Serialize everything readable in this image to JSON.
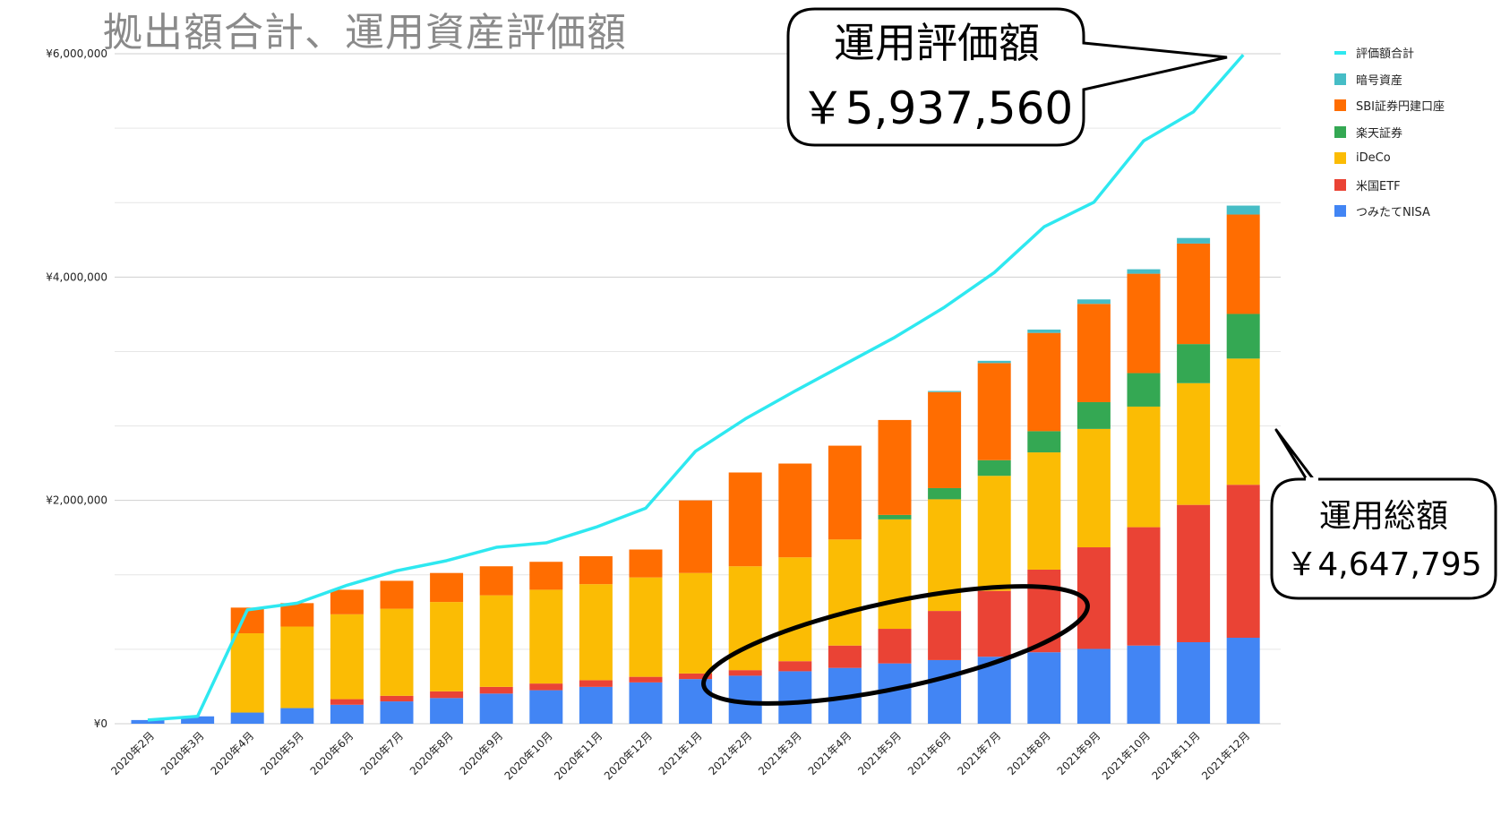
{
  "chart_data": {
    "type": "bar",
    "title": "拠出額合計、運用資産評価額",
    "categories": [
      "2020年2月",
      "2020年3月",
      "2020年4月",
      "2020年5月",
      "2020年6月",
      "2020年7月",
      "2020年8月",
      "2020年9月",
      "2020年10月",
      "2020年11月",
      "2020年12月",
      "2021年1月",
      "2021年2月",
      "2021年3月",
      "2021年4月",
      "2021年5月",
      "2021年6月",
      "2021年7月",
      "2021年8月",
      "2021年9月",
      "2021年10月",
      "2021年11月",
      "2021年12月"
    ],
    "ylim": [
      0,
      6000000
    ],
    "y_ticks": [
      "¥0",
      "¥2,000,000",
      "¥4,000,000",
      "¥6,000,000"
    ],
    "y_tick_values": [
      0,
      2000000,
      4000000,
      6000000
    ],
    "grid": true,
    "legend_position": "right",
    "stacked": true,
    "series": [
      {
        "name": "つみたてNISA",
        "color": "#4285f4",
        "values": [
          33000,
          66000,
          100000,
          140000,
          170000,
          200000,
          230000,
          270000,
          300000,
          330000,
          370000,
          400000,
          430000,
          470000,
          500000,
          540000,
          570000,
          600000,
          640000,
          670000,
          700000,
          730000,
          770000
        ]
      },
      {
        "name": "米国ETF",
        "color": "#ea4335",
        "values": [
          0,
          0,
          0,
          0,
          50000,
          50000,
          60000,
          60000,
          60000,
          60000,
          50000,
          50000,
          50000,
          90000,
          200000,
          310000,
          440000,
          590000,
          740000,
          910000,
          1060000,
          1230000,
          1370000
        ]
      },
      {
        "name": "iDeCo",
        "color": "#fbbc04",
        "values": [
          0,
          0,
          710000,
          730000,
          760000,
          780000,
          800000,
          820000,
          840000,
          860000,
          890000,
          900000,
          930000,
          930000,
          950000,
          980000,
          1000000,
          1030000,
          1050000,
          1060000,
          1080000,
          1090000,
          1130000
        ]
      },
      {
        "name": "楽天証券",
        "color": "#34a853",
        "values": [
          0,
          0,
          0,
          0,
          0,
          0,
          0,
          0,
          0,
          0,
          0,
          0,
          0,
          0,
          0,
          40000,
          100000,
          140000,
          190000,
          240000,
          300000,
          350000,
          400000
        ]
      },
      {
        "name": "SBI証券円建口座",
        "color": "#ff6d01",
        "values": [
          0,
          0,
          230000,
          210000,
          220000,
          250000,
          260000,
          260000,
          250000,
          250000,
          250000,
          650000,
          840000,
          840000,
          840000,
          850000,
          860000,
          870000,
          880000,
          880000,
          890000,
          900000,
          890000
        ]
      },
      {
        "name": "暗号資産",
        "color": "#46bdc6",
        "values": [
          0,
          0,
          0,
          0,
          0,
          0,
          0,
          0,
          0,
          0,
          0,
          0,
          0,
          0,
          0,
          0,
          10000,
          20000,
          30000,
          40000,
          40000,
          50000,
          80000
        ]
      }
    ],
    "line_series": {
      "name": "評価額合計",
      "color": "#2ee8f0",
      "values": [
        33000,
        66000,
        1020000,
        1080000,
        1240000,
        1370000,
        1460000,
        1580000,
        1620000,
        1760000,
        1930000,
        2440000,
        2730000,
        2980000,
        3220000,
        3460000,
        3730000,
        4040000,
        4450000,
        4670000,
        5220000,
        5480000,
        5990000
      ]
    },
    "annotations": [
      {
        "label": "運用評価額",
        "value": "￥5,937,560"
      },
      {
        "label": "運用総額",
        "value": "￥4,647,795"
      }
    ]
  }
}
